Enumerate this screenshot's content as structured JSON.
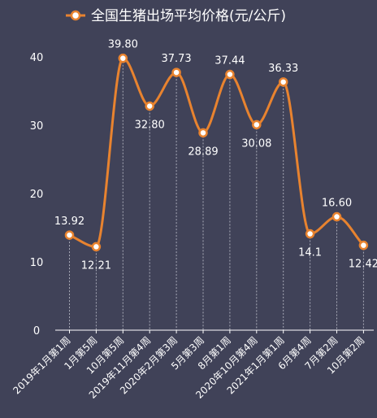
{
  "chart_data": {
    "type": "line",
    "title": "",
    "legend": {
      "name": "全国生猪出场平均价格(元/公斤)",
      "position": "top-center"
    },
    "xlabel": "",
    "ylabel": "",
    "ylim": [
      0,
      44
    ],
    "yticks": [
      0,
      10,
      20,
      30,
      40
    ],
    "categories": [
      "2019年1月第1周",
      "1月第5周",
      "10月第5周",
      "2019年11月第4周",
      "2020年2月第3周",
      "5月第3周",
      "8月第1周",
      "2020年10月第4周",
      "2021年1月第1周",
      "6月第4周",
      "7月第2周",
      "10月第2周"
    ],
    "series": [
      {
        "name": "全国生猪出场平均价格(元/公斤)",
        "values": [
          13.92,
          12.21,
          39.8,
          32.8,
          37.73,
          28.89,
          37.44,
          30.08,
          36.33,
          14.1,
          16.6,
          12.42
        ],
        "labels": [
          "13.92",
          "12.21",
          "39.80",
          "32.80",
          "37.73",
          "28.89",
          "37.44",
          "30.08",
          "36.33",
          "14.1",
          "16.60",
          "12.42"
        ],
        "label_pos": [
          "above",
          "below",
          "above",
          "below",
          "above",
          "below",
          "above",
          "below",
          "above",
          "below",
          "above",
          "below"
        ]
      }
    ],
    "grid": false,
    "colors": {
      "line": "#e8832f",
      "marker_fill": "#ffffff",
      "axis": "#ffffff",
      "dropline": "#a9abb8",
      "background": "#404258"
    }
  }
}
